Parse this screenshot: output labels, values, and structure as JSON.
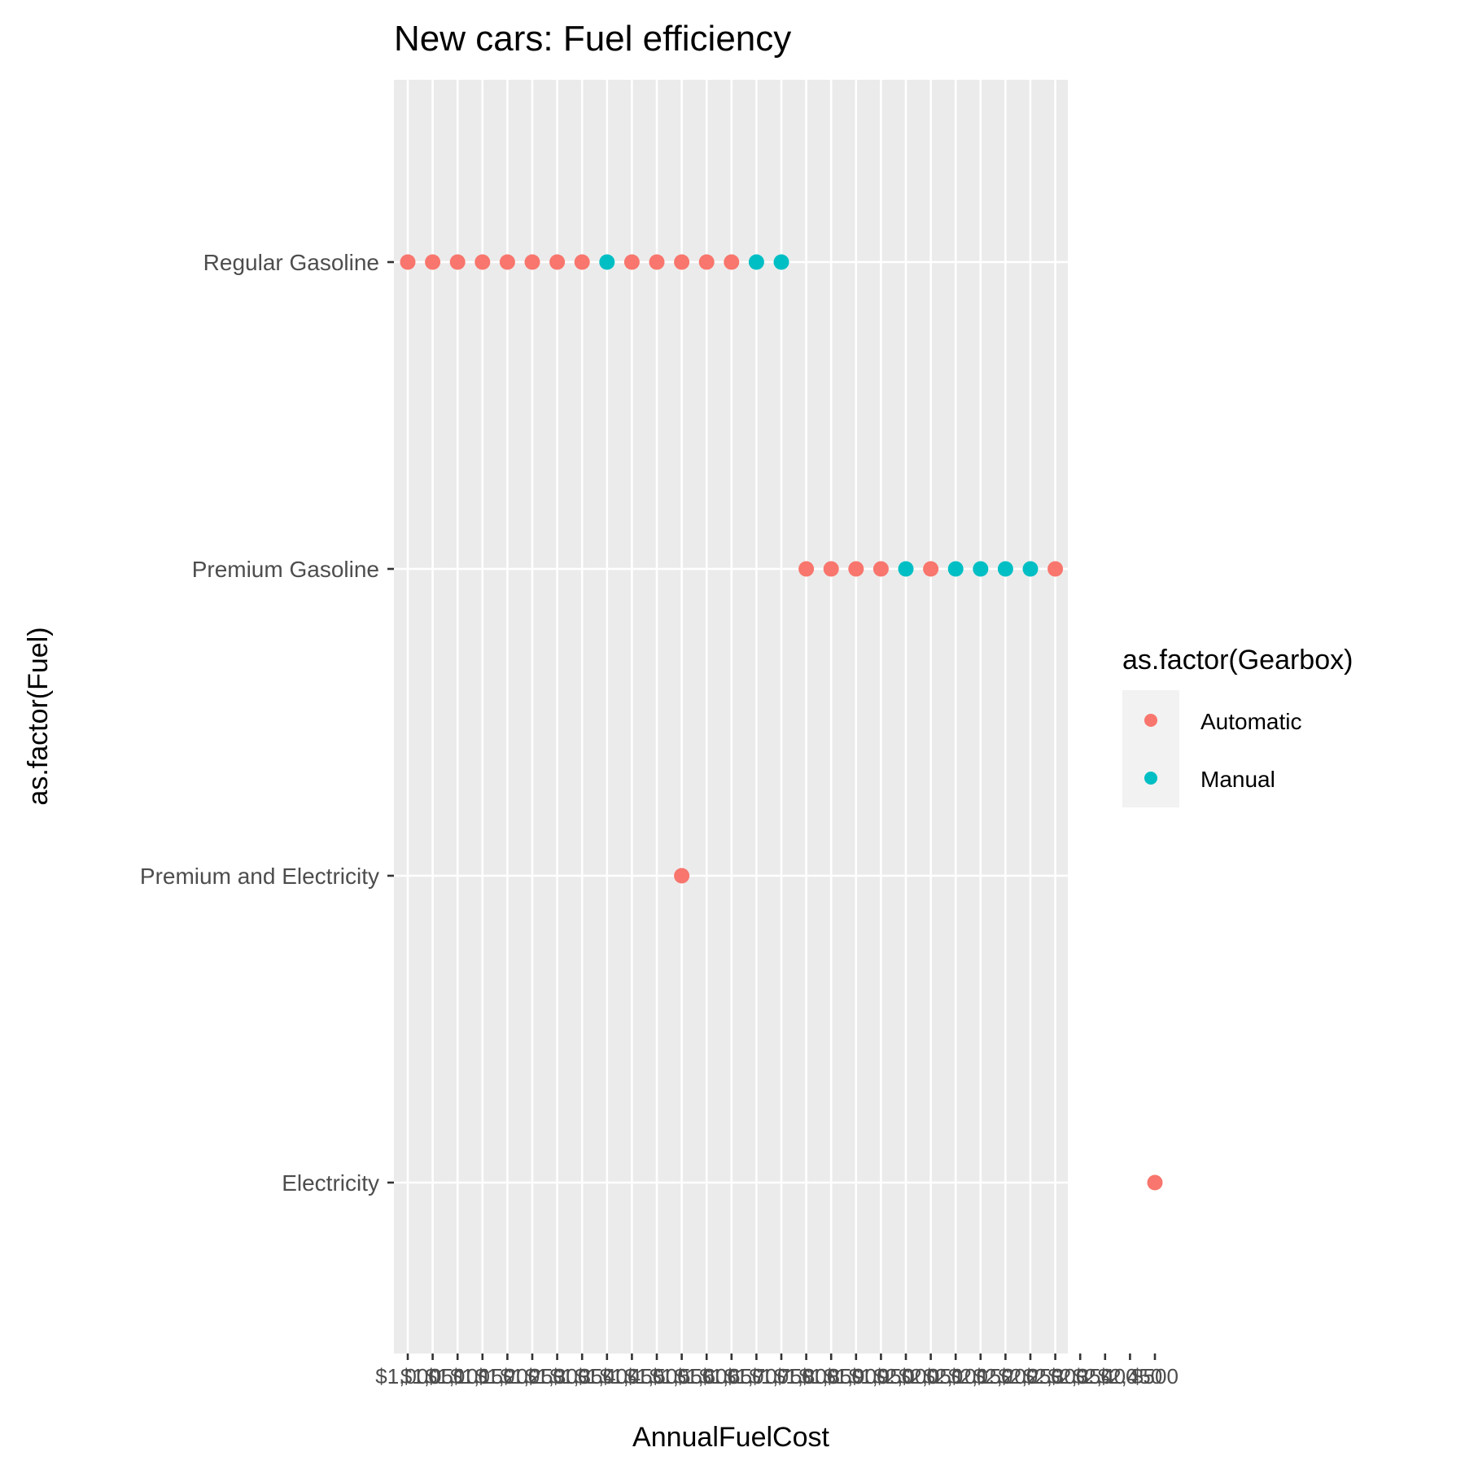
{
  "chart_data": {
    "type": "scatter",
    "title": "New cars: Fuel efficiency",
    "xlabel": "AnnualFuelCost",
    "ylabel": "as.factor(Fuel)",
    "x_categories": [
      "$1,000",
      "$1,050",
      "$1,100",
      "$1,150",
      "$1,200",
      "$1,250",
      "$1,300",
      "$1,350",
      "$1,400",
      "$1,450",
      "$1,500",
      "$1,550",
      "$1,600",
      "$1,650",
      "$1,700",
      "$1,750",
      "$1,800",
      "$1,850",
      "$1,900",
      "$1,950",
      "$2,000",
      "$2,050",
      "$2,100",
      "$2,150",
      "$2,200",
      "$2,250",
      "$2,300",
      "$2,350",
      "$2,400",
      "$2,450",
      "$500"
    ],
    "y_categories": [
      "Regular Gasoline",
      "Premium Gasoline",
      "Premium and Electricity",
      "Electricity"
    ],
    "legend": {
      "title": "as.factor(Gearbox)",
      "placement": "right",
      "entries": [
        {
          "name": "Automatic",
          "color": "#F8766D"
        },
        {
          "name": "Manual",
          "color": "#00BFC4"
        }
      ]
    },
    "series": [
      {
        "name": "Automatic",
        "color": "#F8766D",
        "points": [
          {
            "x": "$1,000",
            "y": "Regular Gasoline"
          },
          {
            "x": "$1,050",
            "y": "Regular Gasoline"
          },
          {
            "x": "$1,100",
            "y": "Regular Gasoline"
          },
          {
            "x": "$1,150",
            "y": "Regular Gasoline"
          },
          {
            "x": "$1,200",
            "y": "Regular Gasoline"
          },
          {
            "x": "$1,250",
            "y": "Regular Gasoline"
          },
          {
            "x": "$1,300",
            "y": "Regular Gasoline"
          },
          {
            "x": "$1,350",
            "y": "Regular Gasoline"
          },
          {
            "x": "$1,450",
            "y": "Regular Gasoline"
          },
          {
            "x": "$1,500",
            "y": "Regular Gasoline"
          },
          {
            "x": "$1,550",
            "y": "Regular Gasoline"
          },
          {
            "x": "$1,600",
            "y": "Regular Gasoline"
          },
          {
            "x": "$1,650",
            "y": "Regular Gasoline"
          },
          {
            "x": "$1,800",
            "y": "Premium Gasoline"
          },
          {
            "x": "$1,850",
            "y": "Premium Gasoline"
          },
          {
            "x": "$1,900",
            "y": "Premium Gasoline"
          },
          {
            "x": "$1,950",
            "y": "Premium Gasoline"
          },
          {
            "x": "$2,050",
            "y": "Premium Gasoline"
          },
          {
            "x": "$2,300",
            "y": "Premium Gasoline"
          },
          {
            "x": "$1,550",
            "y": "Premium and Electricity"
          },
          {
            "x": "$500",
            "y": "Electricity"
          }
        ]
      },
      {
        "name": "Manual",
        "color": "#00BFC4",
        "points": [
          {
            "x": "$1,400",
            "y": "Regular Gasoline"
          },
          {
            "x": "$1,700",
            "y": "Regular Gasoline"
          },
          {
            "x": "$1,750",
            "y": "Regular Gasoline"
          },
          {
            "x": "$2,000",
            "y": "Premium Gasoline"
          },
          {
            "x": "$2,100",
            "y": "Premium Gasoline"
          },
          {
            "x": "$2,150",
            "y": "Premium Gasoline"
          },
          {
            "x": "$2,200",
            "y": "Premium Gasoline"
          },
          {
            "x": "$2,250",
            "y": "Premium Gasoline"
          }
        ]
      }
    ],
    "grid": true,
    "panel_background": "#EBEBEB",
    "grid_color": "#FFFFFF"
  }
}
